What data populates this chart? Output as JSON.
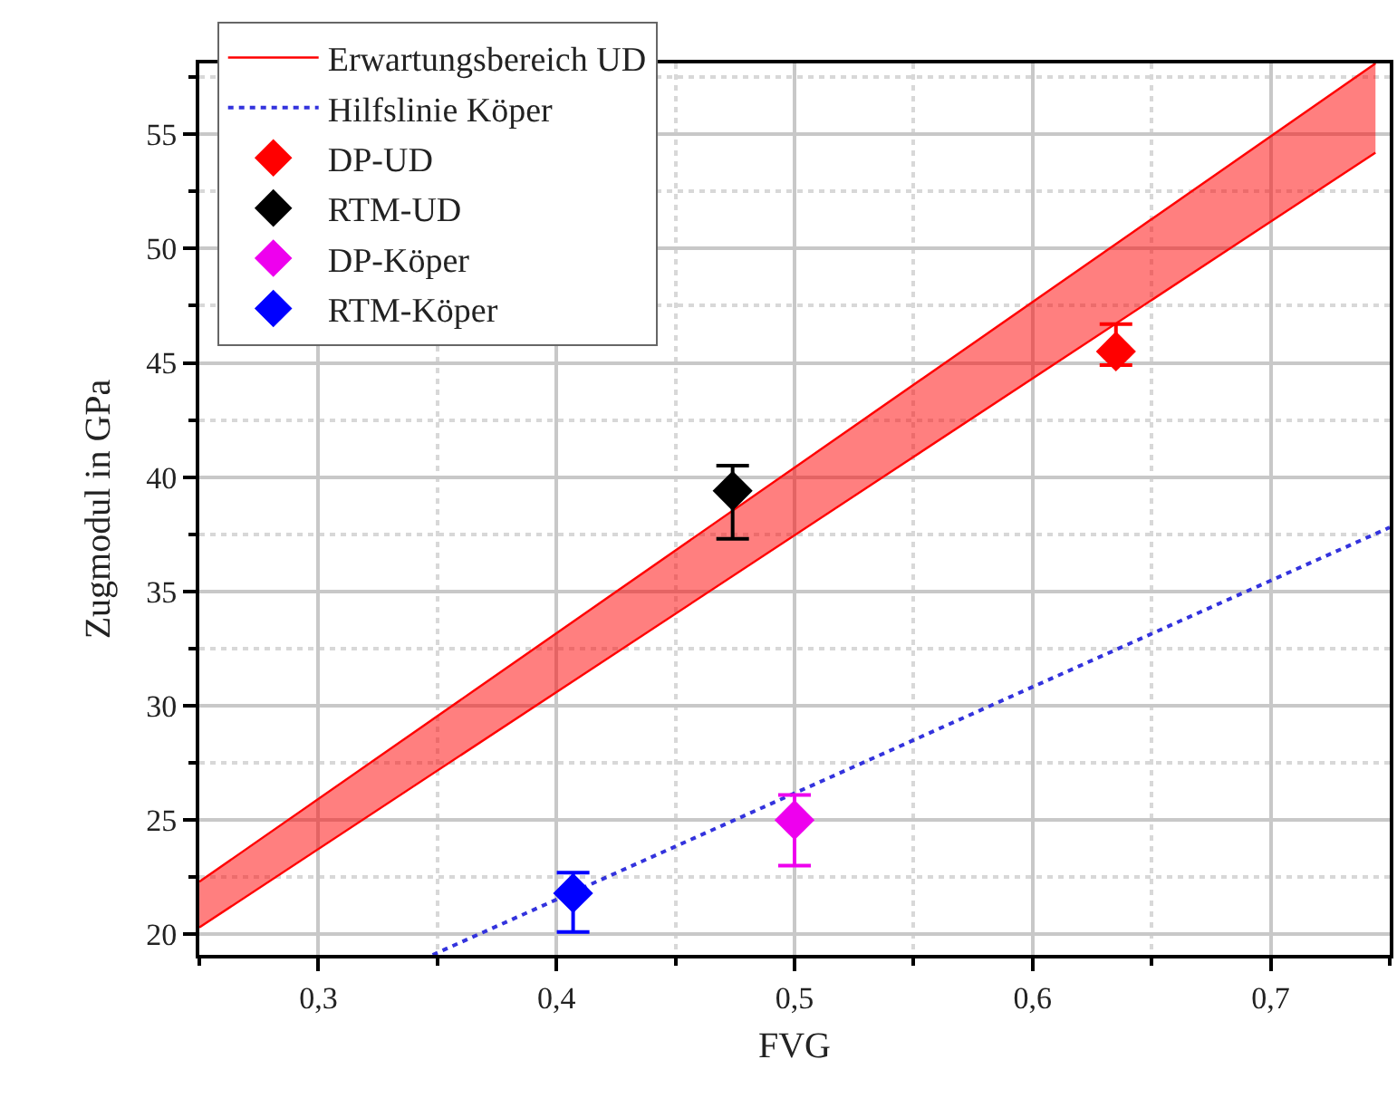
{
  "chart_data": {
    "type": "scatter",
    "xlabel": "FVG",
    "ylabel": "Zugmodul in GPa",
    "xlim": [
      0.25,
      0.75
    ],
    "ylim": [
      19.1,
      58.1
    ],
    "xticks": [
      {
        "value": 0.3,
        "label": "0,3"
      },
      {
        "value": 0.4,
        "label": "0,4"
      },
      {
        "value": 0.5,
        "label": "0,5"
      },
      {
        "value": 0.6,
        "label": "0,6"
      },
      {
        "value": 0.7,
        "label": "0,7"
      }
    ],
    "yticks": [
      20,
      25,
      30,
      35,
      40,
      45,
      50,
      55
    ],
    "grid": true,
    "legend": "top left",
    "marker": "diamond",
    "series": [
      {
        "name": "Erwartungsbereich UD",
        "type": "line",
        "marker": "none",
        "color": "#ff0000",
        "x": [
          0.25,
          0.744
        ],
        "values": [
          20.3,
          54.2
        ]
      },
      {
        "type": "area",
        "marker": "none",
        "color": "#ff0000",
        "x": [
          0.25,
          0.744
        ],
        "values": [
          22.3,
          58.1
        ]
      },
      {
        "name": "Hilfslinie Köper",
        "type": "line",
        "marker": "none",
        "line_style": "dotted",
        "color": "#3333dd",
        "x": [
          0.348,
          0.75
        ],
        "values": [
          19.1,
          37.8
        ]
      },
      {
        "name": "DP-UD",
        "color": "#ff0000",
        "x": [
          0.635
        ],
        "values": [
          45.5
        ],
        "errors": [
          [
            44.9,
            46.7
          ]
        ]
      },
      {
        "name": "RTM-UD",
        "color": "#000000",
        "x": [
          0.474
        ],
        "values": [
          39.4
        ],
        "errors": [
          [
            37.3,
            40.5
          ]
        ]
      },
      {
        "name": "DP-Köper",
        "color": "#ee00ee",
        "x": [
          0.5
        ],
        "values": [
          25.0
        ],
        "errors": [
          [
            23.0,
            26.1
          ]
        ]
      },
      {
        "name": "RTM-Köper",
        "color": "#0000ff",
        "x": [
          0.407
        ],
        "values": [
          21.8
        ],
        "errors": [
          [
            20.1,
            22.7
          ]
        ]
      }
    ]
  }
}
